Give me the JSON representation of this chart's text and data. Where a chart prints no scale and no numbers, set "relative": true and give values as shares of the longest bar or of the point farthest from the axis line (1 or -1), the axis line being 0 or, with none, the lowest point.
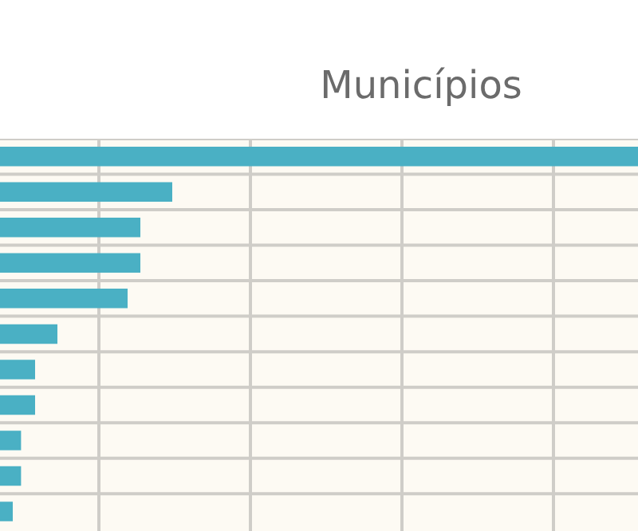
{
  "chart_data": {
    "type": "bar",
    "orientation": "horizontal",
    "relative": true,
    "title": "Municípios",
    "categories": [
      null,
      null,
      null,
      null,
      null,
      null,
      null,
      null,
      null,
      null,
      null
    ],
    "values": [
      1,
      0.27,
      0.22,
      0.22,
      0.2,
      0.09,
      0.055,
      0.055,
      0.033,
      0.033,
      0.02
    ],
    "color": "#4ab0c4",
    "grid": true,
    "tick_labels": false,
    "legend": false
  }
}
